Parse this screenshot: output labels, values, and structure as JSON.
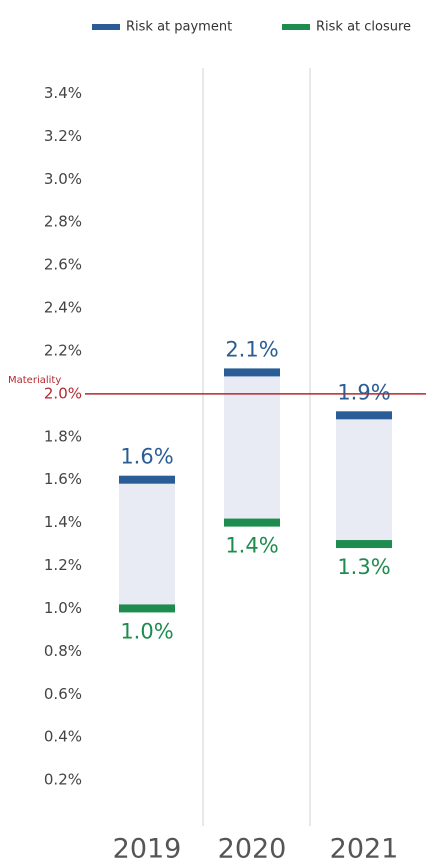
{
  "chart_data": {
    "type": "range",
    "categories": [
      "2019",
      "2020",
      "2021"
    ],
    "series": [
      {
        "name": "Risk at payment",
        "color": "#2a5d96",
        "values": [
          1.6,
          2.1,
          1.9
        ],
        "value_labels": [
          "1.6%",
          "2.1%",
          "1.9%"
        ]
      },
      {
        "name": "Risk at closure",
        "color": "#1e8c4e",
        "values": [
          1.0,
          1.4,
          1.3
        ],
        "value_labels": [
          "1.0%",
          "1.4%",
          "1.3%"
        ]
      }
    ],
    "range_color": "#e8eaf4",
    "ylim": [
      0,
      3.5
    ],
    "yticks": [
      {
        "value": 0.2,
        "label": "0.2%"
      },
      {
        "value": 0.4,
        "label": "0.4%"
      },
      {
        "value": 0.6,
        "label": "0.6%"
      },
      {
        "value": 0.8,
        "label": "0.8%"
      },
      {
        "value": 1.0,
        "label": "1.0%"
      },
      {
        "value": 1.2,
        "label": "1.2%"
      },
      {
        "value": 1.4,
        "label": "1.4%"
      },
      {
        "value": 1.6,
        "label": "1.6%"
      },
      {
        "value": 1.8,
        "label": "1.8%"
      },
      {
        "value": 2.0,
        "label": "2.0%"
      },
      {
        "value": 2.2,
        "label": "2.2%"
      },
      {
        "value": 2.4,
        "label": "2.4%"
      },
      {
        "value": 2.6,
        "label": "2.6%"
      },
      {
        "value": 2.8,
        "label": "2.8%"
      },
      {
        "value": 3.0,
        "label": "3.0%"
      },
      {
        "value": 3.2,
        "label": "3.2%"
      },
      {
        "value": 3.4,
        "label": "3.4%"
      }
    ],
    "materiality": {
      "label": "Materiality",
      "value": 2.0,
      "color": "#b5282f"
    },
    "legend": "top-right"
  }
}
